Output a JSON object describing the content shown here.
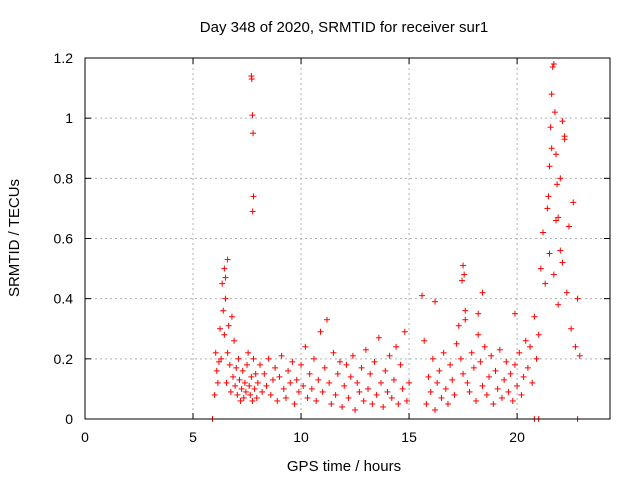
{
  "chart_data": {
    "type": "scatter",
    "title": "Day 348 of 2020, SRMTID for receiver sur1",
    "xlabel": "GPS time / hours",
    "ylabel": "SRMTID / TECUs",
    "xlim": [
      0,
      24.3
    ],
    "ylim": [
      0,
      1.2
    ],
    "xticks": [
      0,
      5,
      10,
      15,
      20
    ],
    "xtick_labels": [
      "0",
      "5",
      "10",
      "15",
      "20"
    ],
    "yticks": [
      0,
      0.2,
      0.4,
      0.6,
      0.8,
      1.0,
      1.2
    ],
    "ytick_labels": [
      "0",
      "0.2",
      "0.4",
      "0.6",
      "0.8",
      "1",
      "1.2"
    ],
    "grid": true,
    "marker": "+",
    "color": "#ff0000",
    "series": [
      {
        "name": "sur1",
        "x": [
          5.9,
          6.0,
          6.05,
          6.1,
          6.15,
          6.2,
          6.25,
          6.3,
          6.35,
          6.4,
          6.45,
          6.5,
          6.55,
          6.6,
          6.65,
          6.7,
          6.75,
          6.8,
          6.85,
          6.9,
          6.95,
          7.0,
          7.05,
          7.1,
          7.15,
          7.2,
          7.25,
          7.3,
          7.35,
          7.4,
          7.45,
          7.5,
          7.55,
          7.6,
          7.65,
          7.7,
          7.75,
          7.8,
          7.85,
          7.9,
          7.95,
          8.0,
          8.1,
          8.2,
          8.3,
          8.4,
          8.5,
          8.6,
          8.7,
          8.8,
          8.9,
          9.0,
          9.1,
          9.2,
          9.3,
          9.4,
          9.5,
          9.6,
          9.7,
          9.8,
          9.9,
          10.0,
          10.1,
          10.2,
          10.3,
          10.4,
          10.5,
          10.6,
          10.7,
          10.8,
          10.9,
          11.0,
          11.1,
          11.2,
          11.3,
          11.4,
          11.5,
          11.6,
          11.7,
          11.8,
          11.9,
          12.0,
          12.1,
          12.2,
          12.3,
          12.4,
          12.5,
          12.6,
          12.7,
          12.8,
          12.9,
          13.0,
          13.1,
          13.2,
          13.3,
          13.4,
          13.5,
          13.6,
          13.7,
          13.8,
          13.9,
          14.0,
          14.1,
          14.2,
          14.3,
          14.4,
          14.5,
          14.6,
          14.7,
          14.8,
          14.9,
          15.0,
          15.6,
          15.7,
          15.8,
          15.9,
          16.0,
          16.1,
          16.2,
          16.3,
          16.4,
          16.5,
          16.6,
          16.7,
          16.8,
          16.9,
          17.0,
          17.1,
          17.2,
          17.3,
          17.4,
          17.5,
          17.6,
          17.7,
          17.8,
          17.9,
          18.0,
          18.1,
          18.2,
          18.3,
          18.4,
          18.5,
          18.6,
          18.7,
          18.8,
          18.9,
          19.0,
          19.1,
          19.2,
          19.3,
          19.4,
          19.5,
          19.6,
          19.7,
          19.8,
          19.9,
          20.0,
          20.1,
          20.2,
          20.3,
          20.4,
          20.5,
          20.6,
          20.7,
          20.8,
          20.9,
          21.0,
          21.1,
          21.2,
          21.3,
          21.4,
          21.5,
          21.6,
          21.7,
          21.8,
          21.9,
          22.0,
          22.1,
          22.2,
          22.3,
          22.4,
          22.5,
          22.6,
          22.7,
          22.8,
          22.9,
          7.7,
          7.72,
          7.75,
          7.78,
          7.8,
          7.76,
          21.65,
          21.7,
          21.6,
          21.75,
          21.55,
          21.8,
          21.5,
          21.85,
          21.45,
          21.9,
          22.1,
          22.2,
          22.0,
          6.5,
          6.6,
          6.45,
          17.5,
          17.55,
          17.45,
          17.6,
          16.2,
          18.4,
          18.2,
          19.9,
          20.8,
          21.0,
          22.8
        ],
        "y": [
          0.0,
          0.08,
          0.22,
          0.16,
          0.12,
          0.19,
          0.3,
          0.2,
          0.45,
          0.36,
          0.28,
          0.4,
          0.12,
          0.22,
          0.31,
          0.18,
          0.09,
          0.34,
          0.14,
          0.26,
          0.11,
          0.17,
          0.08,
          0.2,
          0.13,
          0.06,
          0.1,
          0.16,
          0.07,
          0.12,
          0.09,
          0.18,
          0.22,
          0.11,
          0.08,
          0.14,
          0.06,
          0.2,
          0.1,
          0.15,
          0.07,
          0.12,
          0.18,
          0.09,
          0.15,
          0.11,
          0.2,
          0.08,
          0.13,
          0.17,
          0.06,
          0.14,
          0.21,
          0.1,
          0.07,
          0.16,
          0.12,
          0.19,
          0.05,
          0.13,
          0.09,
          0.18,
          0.11,
          0.24,
          0.07,
          0.15,
          0.1,
          0.2,
          0.06,
          0.13,
          0.29,
          0.09,
          0.17,
          0.33,
          0.12,
          0.05,
          0.22,
          0.08,
          0.15,
          0.19,
          0.04,
          0.11,
          0.18,
          0.07,
          0.14,
          0.21,
          0.03,
          0.12,
          0.09,
          0.17,
          0.06,
          0.23,
          0.1,
          0.15,
          0.05,
          0.19,
          0.08,
          0.27,
          0.12,
          0.04,
          0.16,
          0.09,
          0.21,
          0.07,
          0.13,
          0.24,
          0.05,
          0.18,
          0.1,
          0.29,
          0.06,
          0.12,
          0.41,
          0.26,
          0.05,
          0.14,
          0.09,
          0.2,
          0.03,
          0.12,
          0.16,
          0.07,
          0.22,
          0.1,
          0.05,
          0.18,
          0.13,
          0.08,
          0.25,
          0.31,
          0.2,
          0.15,
          0.33,
          0.12,
          0.09,
          0.22,
          0.17,
          0.06,
          0.28,
          0.19,
          0.11,
          0.24,
          0.08,
          0.14,
          0.21,
          0.05,
          0.16,
          0.1,
          0.23,
          0.07,
          0.13,
          0.19,
          0.09,
          0.15,
          0.06,
          0.18,
          0.11,
          0.22,
          0.08,
          0.14,
          0.26,
          0.17,
          0.24,
          0.12,
          0.34,
          0.2,
          0.28,
          0.5,
          0.62,
          0.45,
          0.7,
          0.55,
          0.9,
          0.48,
          0.66,
          0.38,
          0.8,
          0.52,
          0.94,
          0.42,
          0.64,
          0.3,
          0.72,
          0.24,
          0.4,
          0.21,
          1.14,
          1.13,
          1.01,
          0.95,
          0.74,
          0.69,
          1.17,
          1.18,
          1.08,
          1.02,
          0.97,
          0.88,
          0.84,
          0.78,
          0.74,
          0.67,
          0.99,
          0.93,
          0.56,
          0.47,
          0.53,
          0.5,
          0.51,
          0.48,
          0.46,
          0.36,
          0.39,
          0.42,
          0.35,
          0.35,
          0.0,
          0.0,
          0.0
        ]
      }
    ]
  }
}
